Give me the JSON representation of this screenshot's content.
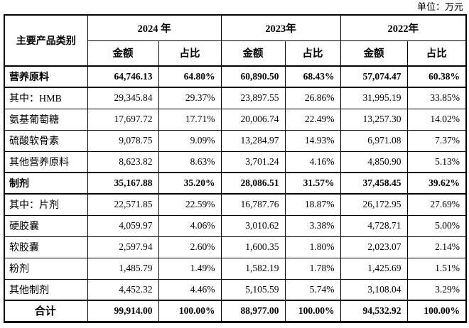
{
  "unit_label": "单位：万元",
  "table": {
    "category_header": "主要产品类别",
    "year_groups": [
      "2024 年",
      "2023年",
      "2022年"
    ],
    "sub_headers": {
      "amount": "金额",
      "ratio": "占比"
    },
    "rows": [
      {
        "label": "营养原料",
        "style": "section",
        "values": [
          "64,746.13",
          "64.80%",
          "60,890.50",
          "68.43%",
          "57,074.47",
          "60.38%"
        ]
      },
      {
        "label": "其中：HMB",
        "style": "",
        "values": [
          "29,345.84",
          "29.37%",
          "23,897.55",
          "26.86%",
          "31,995.19",
          "33.85%"
        ]
      },
      {
        "label": "氨基葡萄糖",
        "style": "",
        "values": [
          "17,697.72",
          "17.71%",
          "20,006.74",
          "22.49%",
          "13,257.30",
          "14.02%"
        ]
      },
      {
        "label": "硫酸软骨素",
        "style": "",
        "values": [
          "9,078.75",
          "9.09%",
          "13,284.97",
          "14.93%",
          "6,971.08",
          "7.37%"
        ]
      },
      {
        "label": "其他营养原料",
        "style": "",
        "values": [
          "8,623.82",
          "8.63%",
          "3,701.24",
          "4.16%",
          "4,850.90",
          "5.13%"
        ]
      },
      {
        "label": "制剂",
        "style": "section",
        "values": [
          "35,167.88",
          "35.20%",
          "28,086.51",
          "31.57%",
          "37,458.45",
          "39.62%"
        ]
      },
      {
        "label": "其中：片剂",
        "style": "",
        "values": [
          "22,571.85",
          "22.59%",
          "16,787.76",
          "18.87%",
          "26,172.95",
          "27.69%"
        ]
      },
      {
        "label": "硬胶囊",
        "style": "",
        "values": [
          "4,059.97",
          "4.06%",
          "3,010.62",
          "3.38%",
          "4,728.71",
          "5.00%"
        ]
      },
      {
        "label": "软胶囊",
        "style": "",
        "values": [
          "2,597.94",
          "2.60%",
          "1,600.35",
          "1.80%",
          "2,023.07",
          "2.14%"
        ]
      },
      {
        "label": "粉剂",
        "style": "",
        "values": [
          "1,485.79",
          "1.49%",
          "1,582.19",
          "1.78%",
          "1,425.69",
          "1.51%"
        ]
      },
      {
        "label": "其他制剂",
        "style": "",
        "values": [
          "4,452.32",
          "4.46%",
          "5,105.59",
          "5.74%",
          "3,108.04",
          "3.29%"
        ]
      },
      {
        "label": "合计",
        "style": "total",
        "values": [
          "99,914.00",
          "100.00%",
          "88,977.00",
          "100.00%",
          "94,532.92",
          "100.00%"
        ]
      }
    ]
  }
}
